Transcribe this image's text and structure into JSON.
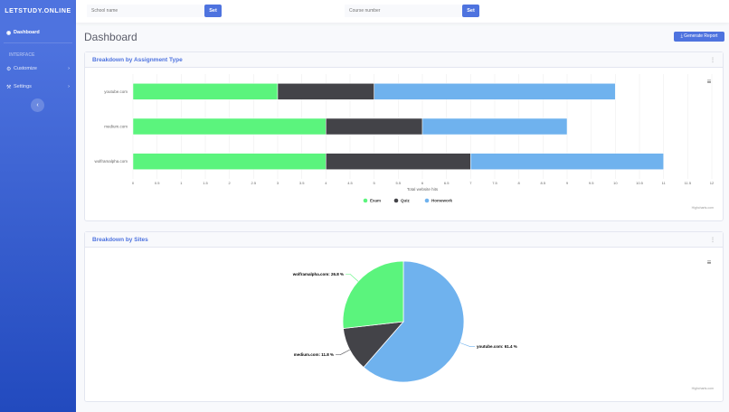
{
  "sidebar": {
    "brand": "LETSTUDY.ONLINE",
    "items": [
      {
        "label": "Dashboard",
        "icon": "tachometer-icon"
      },
      {
        "label": "Customize",
        "icon": "cog-icon"
      },
      {
        "label": "Settings",
        "icon": "wrench-icon"
      }
    ],
    "heading": "INTERFACE",
    "toggle": "‹"
  },
  "topbar": {
    "school_placeholder": "School name",
    "course_placeholder": "Course number",
    "set_label": "Set"
  },
  "page": {
    "title": "Dashboard",
    "generate_label": "⤓ Generate Report"
  },
  "colors": {
    "accent": "#4e73df",
    "exam": "#5bf47d",
    "quiz": "#434348",
    "homework": "#6fb2ee"
  },
  "chart_data": [
    {
      "type": "bar",
      "orientation": "horizontal",
      "stacked": true,
      "title": "Breakdown by Assignment Type",
      "categories": [
        "youtube.com",
        "medium.com",
        "wolframalpha.com"
      ],
      "series": [
        {
          "name": "Exam",
          "values": [
            3,
            4,
            4
          ]
        },
        {
          "name": "Quiz",
          "values": [
            2,
            2,
            3
          ]
        },
        {
          "name": "Homework",
          "values": [
            5,
            3,
            4
          ]
        }
      ],
      "xlabel": "Total website hits",
      "xlim": [
        0,
        12
      ],
      "xticks": [
        0,
        0.5,
        1,
        1.5,
        2,
        2.5,
        3,
        3.5,
        4,
        4.5,
        5,
        5.5,
        6,
        6.5,
        7,
        7.5,
        8,
        8.5,
        9,
        9.5,
        10,
        10.5,
        11,
        11.5,
        12
      ],
      "grid": true,
      "legend": "bottom",
      "credit": "Highcharts.com"
    },
    {
      "type": "pie",
      "title": "Breakdown by Sites",
      "slices": [
        {
          "label": "youtube.com",
          "value": 61.4
        },
        {
          "label": "medium.com",
          "value": 11.8
        },
        {
          "label": "wolframalpha.com",
          "value": 26.8
        }
      ],
      "credit": "Highcharts.com"
    }
  ]
}
